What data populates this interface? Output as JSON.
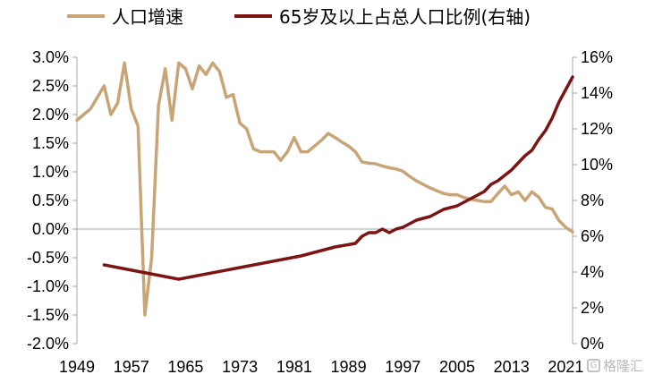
{
  "chart_data": {
    "type": "line",
    "legend_position": "top",
    "series": [
      {
        "name": "人口增速",
        "axis": "left",
        "color": "#c8a576",
        "x": [
          1949,
          1950,
          1951,
          1952,
          1953,
          1954,
          1955,
          1956,
          1957,
          1958,
          1959,
          1960,
          1961,
          1962,
          1963,
          1964,
          1965,
          1966,
          1967,
          1968,
          1969,
          1970,
          1971,
          1972,
          1973,
          1974,
          1975,
          1976,
          1977,
          1978,
          1979,
          1980,
          1981,
          1982,
          1983,
          1984,
          1985,
          1986,
          1987,
          1988,
          1989,
          1990,
          1991,
          1992,
          1993,
          1994,
          1995,
          1996,
          1997,
          1998,
          1999,
          2000,
          2001,
          2002,
          2003,
          2004,
          2005,
          2006,
          2007,
          2008,
          2009,
          2010,
          2011,
          2012,
          2013,
          2014,
          2015,
          2016,
          2017,
          2018,
          2019,
          2020,
          2021,
          2022
        ],
        "y": [
          1.9,
          2.0,
          2.1,
          2.3,
          2.5,
          2.0,
          2.2,
          2.9,
          2.1,
          1.8,
          -1.5,
          -0.5,
          2.15,
          2.8,
          1.9,
          2.9,
          2.8,
          2.45,
          2.85,
          2.7,
          2.9,
          2.75,
          2.3,
          2.35,
          1.85,
          1.75,
          1.4,
          1.35,
          1.35,
          1.35,
          1.2,
          1.35,
          1.6,
          1.35,
          1.35,
          1.45,
          1.55,
          1.67,
          1.6,
          1.52,
          1.45,
          1.35,
          1.17,
          1.15,
          1.14,
          1.1,
          1.07,
          1.05,
          1.01,
          0.92,
          0.84,
          0.78,
          0.72,
          0.67,
          0.62,
          0.6,
          0.6,
          0.55,
          0.52,
          0.5,
          0.48,
          0.48,
          0.62,
          0.75,
          0.6,
          0.65,
          0.5,
          0.65,
          0.56,
          0.38,
          0.35,
          0.15,
          0.03,
          -0.05
        ]
      },
      {
        "name": "65岁及以上占总人口比例(右轴)",
        "axis": "right",
        "color": "#7b1414",
        "x": [
          1953,
          1964,
          1982,
          1987,
          1990,
          1991,
          1992,
          1993,
          1994,
          1995,
          1996,
          1997,
          1998,
          1999,
          2000,
          2001,
          2002,
          2003,
          2004,
          2005,
          2006,
          2007,
          2008,
          2009,
          2010,
          2011,
          2012,
          2013,
          2014,
          2015,
          2016,
          2017,
          2018,
          2019,
          2020,
          2021,
          2022
        ],
        "y": [
          4.4,
          3.6,
          4.9,
          5.4,
          5.6,
          6.0,
          6.2,
          6.2,
          6.4,
          6.2,
          6.4,
          6.5,
          6.7,
          6.9,
          7.0,
          7.1,
          7.3,
          7.5,
          7.6,
          7.7,
          7.9,
          8.1,
          8.3,
          8.5,
          8.9,
          9.1,
          9.4,
          9.7,
          10.1,
          10.5,
          10.8,
          11.4,
          11.9,
          12.6,
          13.5,
          14.2,
          14.9
        ]
      }
    ],
    "x_ticks": [
      1949,
      1957,
      1965,
      1973,
      1981,
      1989,
      1997,
      2005,
      2013,
      2021
    ],
    "x_range": [
      1949,
      2022
    ],
    "y_left": {
      "range": [
        -2.0,
        3.0
      ],
      "ticks": [
        "-2.0%",
        "-1.5%",
        "-1.0%",
        "-0.5%",
        "0.0%",
        "0.5%",
        "1.0%",
        "1.5%",
        "2.0%",
        "2.5%",
        "3.0%"
      ],
      "tick_values": [
        -2.0,
        -1.5,
        -1.0,
        -0.5,
        0.0,
        0.5,
        1.0,
        1.5,
        2.0,
        2.5,
        3.0
      ]
    },
    "y_right": {
      "range": [
        0,
        16
      ],
      "ticks": [
        "0%",
        "2%",
        "4%",
        "6%",
        "8%",
        "10%",
        "12%",
        "14%",
        "16%"
      ],
      "tick_values": [
        0,
        2,
        4,
        6,
        8,
        10,
        12,
        14,
        16
      ]
    },
    "grid": false,
    "zero_line": true
  },
  "watermark": "格隆汇"
}
